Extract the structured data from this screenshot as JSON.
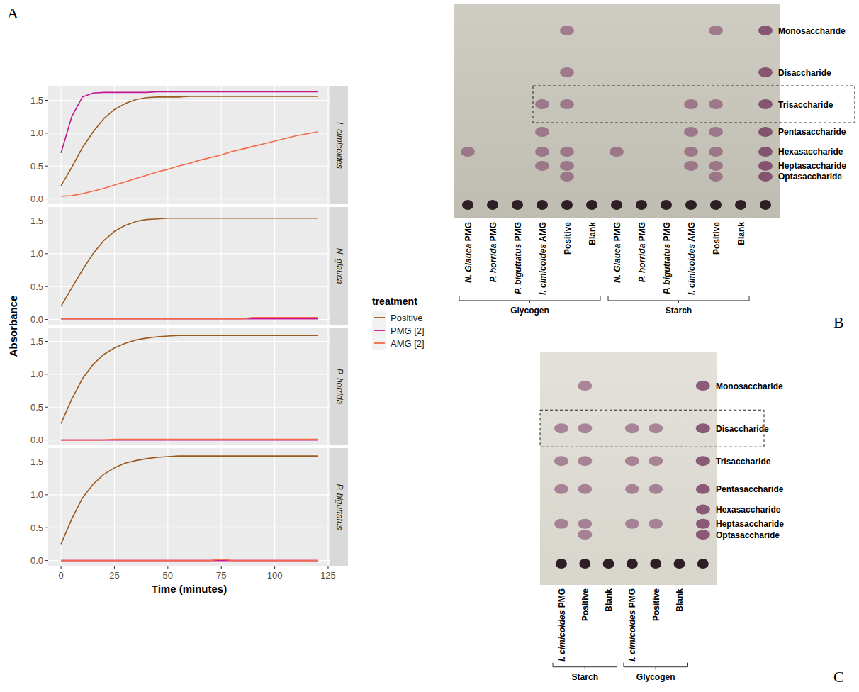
{
  "panel_labels": [
    "A",
    "B",
    "C"
  ],
  "chart_data": {
    "type": "line",
    "x_label": "Time (minutes)",
    "y_label": "Absorbance",
    "legend_title": "treatment",
    "legend": "right",
    "grid": true,
    "xlim": [
      -6,
      126
    ],
    "xticks": [
      0,
      25,
      50,
      75,
      100,
      125
    ],
    "ylim": [
      -0.08,
      1.71
    ],
    "yticks": [
      {
        "value": 0,
        "label": "0.0"
      },
      {
        "value": 0.5,
        "label": "0.5"
      },
      {
        "value": 1,
        "label": "1.0"
      },
      {
        "value": 1.5,
        "label": "1.5"
      }
    ],
    "x": [
      0,
      5,
      10,
      15,
      20,
      25,
      30,
      35,
      40,
      45,
      50,
      55,
      60,
      65,
      70,
      75,
      80,
      85,
      90,
      95,
      100,
      105,
      110,
      115,
      120
    ],
    "series": [
      {
        "name": "Positive",
        "color": "#9b5b1f"
      },
      {
        "name": "PMG [2]",
        "color": "#c4178f"
      },
      {
        "name": "AMG [2]",
        "color": "#f4694a"
      }
    ],
    "facets": [
      {
        "title": "I. cimicoides",
        "values": [
          [
            0.2,
            0.48,
            0.78,
            1.02,
            1.22,
            1.36,
            1.45,
            1.51,
            1.54,
            1.55,
            1.55,
            1.55,
            1.56,
            1.56,
            1.56,
            1.56,
            1.56,
            1.56,
            1.56,
            1.56,
            1.56,
            1.56,
            1.56,
            1.56,
            1.56
          ],
          [
            0.7,
            1.25,
            1.55,
            1.61,
            1.62,
            1.62,
            1.62,
            1.62,
            1.62,
            1.63,
            1.63,
            1.63,
            1.63,
            1.63,
            1.63,
            1.63,
            1.63,
            1.63,
            1.63,
            1.63,
            1.63,
            1.63,
            1.63,
            1.63,
            1.63
          ],
          [
            0.04,
            0.05,
            0.08,
            0.12,
            0.16,
            0.21,
            0.26,
            0.31,
            0.36,
            0.41,
            0.45,
            0.5,
            0.54,
            0.59,
            0.63,
            0.67,
            0.72,
            0.76,
            0.8,
            0.84,
            0.88,
            0.92,
            0.96,
            0.99,
            1.02
          ]
        ]
      },
      {
        "title": "N. glauca",
        "values": [
          [
            0.2,
            0.48,
            0.75,
            1.0,
            1.2,
            1.34,
            1.43,
            1.49,
            1.52,
            1.53,
            1.54,
            1.54,
            1.54,
            1.54,
            1.54,
            1.54,
            1.54,
            1.54,
            1.54,
            1.54,
            1.54,
            1.54,
            1.54,
            1.54,
            1.54
          ],
          [
            0.01,
            0.01,
            0.01,
            0.01,
            0.01,
            0.01,
            0.01,
            0.01,
            0.01,
            0.01,
            0.01,
            0.01,
            0.01,
            0.01,
            0.01,
            0.01,
            0.01,
            0.01,
            0.01,
            0.01,
            0.01,
            0.01,
            0.01,
            0.01,
            0.01
          ],
          [
            0.01,
            0.01,
            0.01,
            0.01,
            0.01,
            0.01,
            0.01,
            0.01,
            0.01,
            0.01,
            0.01,
            0.01,
            0.01,
            0.01,
            0.01,
            0.01,
            0.01,
            0.01,
            0.03,
            0.03,
            0.03,
            0.03,
            0.03,
            0.03,
            0.03
          ]
        ]
      },
      {
        "title": "P. horrida",
        "values": [
          [
            0.25,
            0.62,
            0.93,
            1.15,
            1.3,
            1.4,
            1.47,
            1.52,
            1.55,
            1.57,
            1.58,
            1.59,
            1.59,
            1.59,
            1.59,
            1.59,
            1.59,
            1.59,
            1.59,
            1.59,
            1.59,
            1.59,
            1.59,
            1.59,
            1.59
          ],
          [
            0,
            0,
            0,
            0,
            0,
            0,
            0,
            0,
            0,
            0,
            0,
            0,
            0,
            0,
            0,
            0,
            0,
            0,
            0,
            0,
            0,
            0,
            0,
            0,
            0
          ],
          [
            0,
            0,
            0,
            0,
            0,
            0.01,
            0.01,
            0.01,
            0.01,
            0.01,
            0.01,
            0.01,
            0.01,
            0.01,
            0.01,
            0.01,
            0.01,
            0.01,
            0.01,
            0.01,
            0.01,
            0.01,
            0.01,
            0.01,
            0.01
          ]
        ]
      },
      {
        "title": "P. biguttatus",
        "values": [
          [
            0.25,
            0.63,
            0.95,
            1.16,
            1.31,
            1.41,
            1.48,
            1.52,
            1.55,
            1.57,
            1.58,
            1.59,
            1.59,
            1.59,
            1.59,
            1.59,
            1.59,
            1.59,
            1.59,
            1.59,
            1.59,
            1.59,
            1.59,
            1.59,
            1.59
          ],
          [
            0,
            0,
            0,
            0,
            0,
            0,
            0,
            0,
            0,
            0,
            0,
            0,
            0,
            0,
            0,
            0,
            0,
            0,
            0,
            0,
            0,
            0,
            0,
            0,
            0
          ],
          [
            0,
            0,
            0,
            0,
            0,
            0,
            0,
            0,
            0,
            0,
            0,
            0,
            0,
            0,
            0,
            0.02,
            0,
            0,
            0,
            0,
            0,
            0,
            0,
            0,
            0
          ]
        ]
      }
    ]
  },
  "tlc_plates": [
    {
      "bands": [
        "Monosaccharide",
        "Disaccharide",
        "Trisaccharide",
        "Pentasaccharide",
        "Hexasaccharide",
        "Heptasaccharide",
        "Optasaccharide"
      ],
      "highlight": "Trisaccharide",
      "groups": [
        {
          "label": "Glycogen",
          "lanes": [
            {
              "label": "N. Glauca PMG",
              "spots": [
                "Hexasaccharide"
              ]
            },
            {
              "label": "P. horrida PMG",
              "spots": []
            },
            {
              "label": "P. biguttatus PMG",
              "spots": []
            },
            {
              "label": "I. cimicoides AMG",
              "spots": [
                "Trisaccharide",
                "Pentasaccharide",
                "Hexasaccharide",
                "Heptasaccharide"
              ]
            },
            {
              "label": "Positive",
              "spots": [
                "Monosaccharide",
                "Disaccharide",
                "Trisaccharide",
                "Hexasaccharide",
                "Heptasaccharide",
                "Optasaccharide"
              ]
            },
            {
              "label": "Blank",
              "spots": []
            }
          ]
        },
        {
          "label": "Starch",
          "lanes": [
            {
              "label": "N. Glauca PMG",
              "spots": [
                "Hexasaccharide"
              ]
            },
            {
              "label": "P. horrida PMG",
              "spots": []
            },
            {
              "label": "P. biguttatus PMG",
              "spots": []
            },
            {
              "label": "I. cimicoides AMG",
              "spots": [
                "Trisaccharide",
                "Pentasaccharide",
                "Hexasaccharide",
                "Heptasaccharide"
              ]
            },
            {
              "label": "Positive",
              "spots": [
                "Monosaccharide",
                "Trisaccharide",
                "Pentasaccharide",
                "Hexasaccharide",
                "Heptasaccharide",
                "Optasaccharide"
              ]
            },
            {
              "label": "Blank",
              "spots": []
            }
          ]
        }
      ]
    },
    {
      "bands": [
        "Monosaccharide",
        "Disaccharide",
        "Trisaccharide",
        "Pentasaccharide",
        "Hexasaccharide",
        "Heptasaccharide",
        "Optasaccharide"
      ],
      "highlight": "Disaccharide",
      "groups": [
        {
          "label": "Starch",
          "lanes": [
            {
              "label": "I. cimicoides PMG",
              "spots": [
                "Disaccharide",
                "Trisaccharide",
                "Pentasaccharide",
                "Heptasaccharide"
              ]
            },
            {
              "label": "Positive",
              "spots": [
                "Monosaccharide",
                "Disaccharide",
                "Trisaccharide",
                "Pentasaccharide",
                "Heptasaccharide",
                "Optasaccharide"
              ]
            },
            {
              "label": "Blank",
              "spots": []
            }
          ]
        },
        {
          "label": "Glycogen",
          "lanes": [
            {
              "label": "I. cimicoides PMG",
              "spots": [
                "Disaccharide",
                "Trisaccharide",
                "Pentasaccharide",
                "Heptasaccharide"
              ]
            },
            {
              "label": "Positive",
              "spots": [
                "Disaccharide",
                "Trisaccharide",
                "Pentasaccharide",
                "Heptasaccharide"
              ]
            },
            {
              "label": "Blank",
              "spots": []
            }
          ]
        }
      ]
    }
  ]
}
